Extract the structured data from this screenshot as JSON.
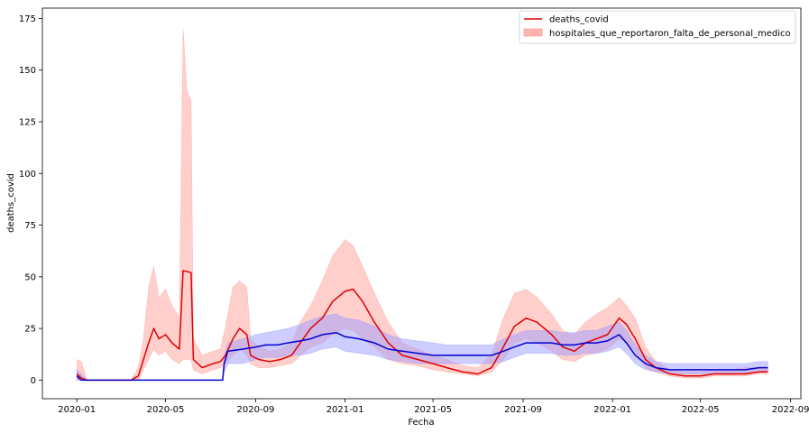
{
  "chart_data": {
    "type": "line",
    "title": "",
    "xlabel": "Fecha",
    "ylabel": "deaths_covid",
    "x_ticks": [
      "2020-01",
      "2020-05",
      "2020-09",
      "2021-01",
      "2021-05",
      "2021-09",
      "2022-01",
      "2022-05",
      "2022-09"
    ],
    "y_ticks": [
      0,
      25,
      50,
      75,
      100,
      125,
      150,
      175
    ],
    "xlim": [
      "2019-11-15",
      "2022-09-15"
    ],
    "ylim": [
      -9,
      180
    ],
    "grid": false,
    "legend": {
      "placement": "top-right",
      "entries": [
        {
          "label": "deaths_covid",
          "kind": "line",
          "color": "#e00000"
        },
        {
          "label": "hospitales_que_reportaron_falta_de_personal_medico",
          "kind": "band",
          "color": "#ffb3ae"
        }
      ]
    },
    "series": [
      {
        "color": "#e00000",
        "band_color": "#ff9f99",
        "points": [
          [
            "2020-01-01",
            3
          ],
          [
            "2020-01-07",
            1
          ],
          [
            "2020-01-15",
            0
          ],
          [
            "2020-02-15",
            0
          ],
          [
            "2020-03-15",
            0
          ],
          [
            "2020-03-25",
            2
          ],
          [
            "2020-04-01",
            10
          ],
          [
            "2020-04-08",
            18
          ],
          [
            "2020-04-15",
            25
          ],
          [
            "2020-04-22",
            20
          ],
          [
            "2020-05-01",
            22
          ],
          [
            "2020-05-10",
            18
          ],
          [
            "2020-05-20",
            15
          ],
          [
            "2020-05-25",
            53
          ],
          [
            "2020-06-05",
            52
          ],
          [
            "2020-06-08",
            10
          ],
          [
            "2020-06-20",
            6
          ],
          [
            "2020-07-05",
            8
          ],
          [
            "2020-07-15",
            9
          ],
          [
            "2020-07-22",
            12
          ],
          [
            "2020-08-01",
            20
          ],
          [
            "2020-08-10",
            25
          ],
          [
            "2020-08-20",
            22
          ],
          [
            "2020-08-25",
            12
          ],
          [
            "2020-09-05",
            10
          ],
          [
            "2020-09-20",
            9
          ],
          [
            "2020-10-05",
            10
          ],
          [
            "2020-10-20",
            12
          ],
          [
            "2020-11-01",
            18
          ],
          [
            "2020-11-15",
            25
          ],
          [
            "2020-12-01",
            30
          ],
          [
            "2020-12-15",
            38
          ],
          [
            "2021-01-01",
            43
          ],
          [
            "2021-01-12",
            44
          ],
          [
            "2021-01-25",
            38
          ],
          [
            "2021-02-10",
            28
          ],
          [
            "2021-03-01",
            18
          ],
          [
            "2021-03-20",
            12
          ],
          [
            "2021-04-10",
            10
          ],
          [
            "2021-05-01",
            8
          ],
          [
            "2021-05-20",
            6
          ],
          [
            "2021-06-10",
            4
          ],
          [
            "2021-07-01",
            3
          ],
          [
            "2021-07-20",
            6
          ],
          [
            "2021-08-05",
            16
          ],
          [
            "2021-08-20",
            26
          ],
          [
            "2021-09-05",
            30
          ],
          [
            "2021-09-20",
            28
          ],
          [
            "2021-10-10",
            22
          ],
          [
            "2021-10-25",
            16
          ],
          [
            "2021-11-10",
            14
          ],
          [
            "2021-11-25",
            18
          ],
          [
            "2021-12-10",
            20
          ],
          [
            "2021-12-25",
            22
          ],
          [
            "2022-01-10",
            30
          ],
          [
            "2022-01-20",
            27
          ],
          [
            "2022-02-01",
            20
          ],
          [
            "2022-02-15",
            10
          ],
          [
            "2022-03-01",
            6
          ],
          [
            "2022-03-20",
            3
          ],
          [
            "2022-04-10",
            2
          ],
          [
            "2022-05-01",
            2
          ],
          [
            "2022-05-20",
            3
          ],
          [
            "2022-06-10",
            3
          ],
          [
            "2022-07-01",
            3
          ],
          [
            "2022-07-20",
            4
          ],
          [
            "2022-08-01",
            4
          ]
        ],
        "band": [
          [
            "2020-01-01",
            0,
            10
          ],
          [
            "2020-01-07",
            0,
            9
          ],
          [
            "2020-01-15",
            0,
            0
          ],
          [
            "2020-03-15",
            0,
            0
          ],
          [
            "2020-03-25",
            0,
            6
          ],
          [
            "2020-04-01",
            5,
            20
          ],
          [
            "2020-04-08",
            10,
            45
          ],
          [
            "2020-04-15",
            15,
            55
          ],
          [
            "2020-04-22",
            12,
            40
          ],
          [
            "2020-05-01",
            14,
            44
          ],
          [
            "2020-05-10",
            10,
            36
          ],
          [
            "2020-05-20",
            8,
            30
          ],
          [
            "2020-05-25",
            10,
            170
          ],
          [
            "2020-05-30",
            10,
            140
          ],
          [
            "2020-06-05",
            10,
            135
          ],
          [
            "2020-06-08",
            5,
            20
          ],
          [
            "2020-06-20",
            3,
            12
          ],
          [
            "2020-07-05",
            5,
            14
          ],
          [
            "2020-07-15",
            6,
            15
          ],
          [
            "2020-07-22",
            8,
            26
          ],
          [
            "2020-08-01",
            12,
            45
          ],
          [
            "2020-08-10",
            15,
            48
          ],
          [
            "2020-08-20",
            12,
            45
          ],
          [
            "2020-08-25",
            8,
            20
          ],
          [
            "2020-09-05",
            6,
            16
          ],
          [
            "2020-09-20",
            6,
            14
          ],
          [
            "2020-10-05",
            7,
            15
          ],
          [
            "2020-10-20",
            8,
            18
          ],
          [
            "2020-11-01",
            12,
            28
          ],
          [
            "2020-11-15",
            16,
            36
          ],
          [
            "2020-12-01",
            18,
            48
          ],
          [
            "2020-12-15",
            22,
            60
          ],
          [
            "2021-01-01",
            25,
            68
          ],
          [
            "2021-01-12",
            24,
            65
          ],
          [
            "2021-01-25",
            20,
            55
          ],
          [
            "2021-02-10",
            16,
            42
          ],
          [
            "2021-03-01",
            10,
            28
          ],
          [
            "2021-03-20",
            8,
            18
          ],
          [
            "2021-04-10",
            7,
            15
          ],
          [
            "2021-05-01",
            5,
            12
          ],
          [
            "2021-05-20",
            4,
            10
          ],
          [
            "2021-06-10",
            3,
            7
          ],
          [
            "2021-07-01",
            2,
            6
          ],
          [
            "2021-07-20",
            4,
            12
          ],
          [
            "2021-08-05",
            10,
            30
          ],
          [
            "2021-08-20",
            18,
            42
          ],
          [
            "2021-09-05",
            20,
            44
          ],
          [
            "2021-09-20",
            18,
            40
          ],
          [
            "2021-10-10",
            14,
            32
          ],
          [
            "2021-10-25",
            10,
            24
          ],
          [
            "2021-11-10",
            9,
            22
          ],
          [
            "2021-11-25",
            12,
            28
          ],
          [
            "2021-12-10",
            13,
            32
          ],
          [
            "2021-12-25",
            15,
            35
          ],
          [
            "2022-01-10",
            20,
            40
          ],
          [
            "2022-01-20",
            18,
            36
          ],
          [
            "2022-02-01",
            14,
            30
          ],
          [
            "2022-02-15",
            6,
            16
          ],
          [
            "2022-03-01",
            4,
            9
          ],
          [
            "2022-03-20",
            2,
            5
          ],
          [
            "2022-04-10",
            1,
            4
          ],
          [
            "2022-05-01",
            1,
            4
          ],
          [
            "2022-05-20",
            2,
            5
          ],
          [
            "2022-06-10",
            2,
            5
          ],
          [
            "2022-07-01",
            2,
            6
          ],
          [
            "2022-07-20",
            3,
            6
          ],
          [
            "2022-08-01",
            3,
            6
          ]
        ]
      },
      {
        "color": "#0000d0",
        "band_color": "#9b9bff",
        "points": [
          [
            "2020-01-01",
            2
          ],
          [
            "2020-01-07",
            0
          ],
          [
            "2020-03-01",
            0
          ],
          [
            "2020-05-01",
            0
          ],
          [
            "2020-07-01",
            0
          ],
          [
            "2020-07-18",
            0
          ],
          [
            "2020-07-20",
            8
          ],
          [
            "2020-07-25",
            14
          ],
          [
            "2020-08-15",
            15
          ],
          [
            "2020-09-01",
            16
          ],
          [
            "2020-09-15",
            17
          ],
          [
            "2020-10-01",
            17
          ],
          [
            "2020-10-15",
            18
          ],
          [
            "2020-11-01",
            19
          ],
          [
            "2020-11-15",
            20
          ],
          [
            "2020-12-01",
            22
          ],
          [
            "2020-12-20",
            23
          ],
          [
            "2021-01-01",
            21
          ],
          [
            "2021-01-20",
            20
          ],
          [
            "2021-02-10",
            18
          ],
          [
            "2021-03-01",
            15
          ],
          [
            "2021-03-20",
            14
          ],
          [
            "2021-04-10",
            13
          ],
          [
            "2021-05-01",
            12
          ],
          [
            "2021-05-20",
            12
          ],
          [
            "2021-06-10",
            12
          ],
          [
            "2021-07-01",
            12
          ],
          [
            "2021-07-20",
            12
          ],
          [
            "2021-08-05",
            14
          ],
          [
            "2021-08-20",
            16
          ],
          [
            "2021-09-05",
            18
          ],
          [
            "2021-09-20",
            18
          ],
          [
            "2021-10-10",
            18
          ],
          [
            "2021-10-25",
            17
          ],
          [
            "2021-11-10",
            17
          ],
          [
            "2021-11-25",
            18
          ],
          [
            "2021-12-10",
            18
          ],
          [
            "2021-12-25",
            19
          ],
          [
            "2022-01-10",
            22
          ],
          [
            "2022-01-20",
            18
          ],
          [
            "2022-02-01",
            12
          ],
          [
            "2022-02-15",
            8
          ],
          [
            "2022-03-01",
            6
          ],
          [
            "2022-03-20",
            5
          ],
          [
            "2022-04-10",
            5
          ],
          [
            "2022-05-01",
            5
          ],
          [
            "2022-05-20",
            5
          ],
          [
            "2022-06-10",
            5
          ],
          [
            "2022-07-01",
            5
          ],
          [
            "2022-07-20",
            6
          ],
          [
            "2022-08-01",
            6
          ]
        ],
        "band": [
          [
            "2020-01-01",
            0,
            5
          ],
          [
            "2020-01-07",
            0,
            3
          ],
          [
            "2020-01-15",
            0,
            0
          ],
          [
            "2020-07-18",
            0,
            0
          ],
          [
            "2020-07-20",
            4,
            12
          ],
          [
            "2020-07-25",
            8,
            18
          ],
          [
            "2020-08-15",
            8,
            20
          ],
          [
            "2020-09-01",
            10,
            22
          ],
          [
            "2020-09-15",
            11,
            23
          ],
          [
            "2020-10-01",
            11,
            24
          ],
          [
            "2020-10-15",
            12,
            25
          ],
          [
            "2020-11-01",
            12,
            27
          ],
          [
            "2020-11-15",
            13,
            29
          ],
          [
            "2020-12-01",
            15,
            31
          ],
          [
            "2020-12-20",
            16,
            32
          ],
          [
            "2021-01-01",
            14,
            30
          ],
          [
            "2021-01-20",
            13,
            29
          ],
          [
            "2021-02-10",
            12,
            26
          ],
          [
            "2021-03-01",
            10,
            22
          ],
          [
            "2021-03-20",
            9,
            20
          ],
          [
            "2021-04-10",
            8,
            19
          ],
          [
            "2021-05-01",
            8,
            18
          ],
          [
            "2021-05-20",
            8,
            17
          ],
          [
            "2021-06-10",
            8,
            17
          ],
          [
            "2021-07-01",
            8,
            17
          ],
          [
            "2021-07-20",
            8,
            17
          ],
          [
            "2021-08-05",
            9,
            20
          ],
          [
            "2021-08-20",
            11,
            22
          ],
          [
            "2021-09-05",
            13,
            24
          ],
          [
            "2021-09-20",
            13,
            24
          ],
          [
            "2021-10-10",
            13,
            24
          ],
          [
            "2021-10-25",
            12,
            23
          ],
          [
            "2021-11-10",
            12,
            23
          ],
          [
            "2021-11-25",
            13,
            24
          ],
          [
            "2021-12-10",
            13,
            24
          ],
          [
            "2021-12-25",
            14,
            26
          ],
          [
            "2022-01-10",
            16,
            28
          ],
          [
            "2022-01-20",
            13,
            24
          ],
          [
            "2022-02-01",
            8,
            17
          ],
          [
            "2022-02-15",
            5,
            12
          ],
          [
            "2022-03-01",
            4,
            9
          ],
          [
            "2022-03-20",
            3,
            8
          ],
          [
            "2022-04-10",
            3,
            8
          ],
          [
            "2022-05-01",
            3,
            8
          ],
          [
            "2022-05-20",
            3,
            8
          ],
          [
            "2022-06-10",
            3,
            8
          ],
          [
            "2022-07-01",
            3,
            8
          ],
          [
            "2022-07-20",
            4,
            9
          ],
          [
            "2022-08-01",
            4,
            9
          ]
        ]
      }
    ]
  }
}
